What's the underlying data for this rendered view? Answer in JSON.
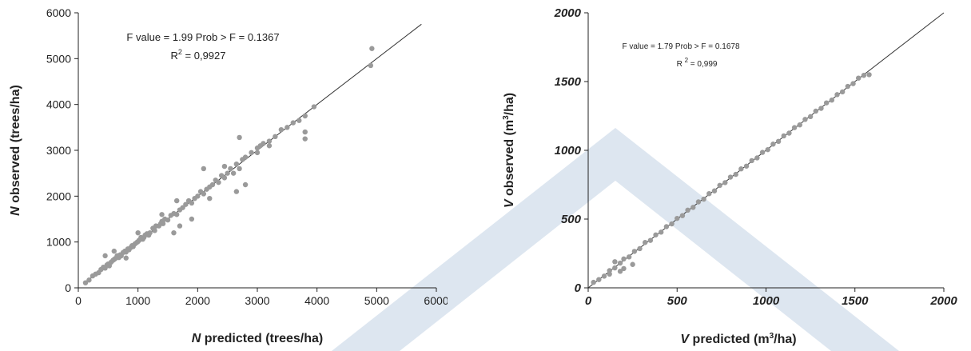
{
  "watermark_color": "#dde6f0",
  "point_color": "#9a9a9a",
  "line_color": "#333333",
  "chart_data": [
    {
      "type": "scatter",
      "xlabel_var": "N",
      "xlabel_rest": " predicted (trees/ha)",
      "ylabel_var": "N",
      "ylabel_rest": " observed (trees/ha)",
      "xlim": [
        0,
        6000
      ],
      "ylim": [
        0,
        6000
      ],
      "xticks": [
        "0",
        "1000",
        "2000",
        "3000",
        "4000",
        "5000",
        "6000"
      ],
      "yticks": [
        "0",
        "1000",
        "2000",
        "3000",
        "4000",
        "5000",
        "6000"
      ],
      "tick_style": "normal",
      "annotation_line1": "F value = 1.99 Prob > F = 0.1367",
      "annotation_r2_value": " = 0,9927",
      "fit_line": {
        "x": [
          100,
          5750
        ],
        "y": [
          100,
          5750
        ]
      },
      "points": {
        "x": [
          120,
          180,
          240,
          290,
          340,
          380,
          420,
          450,
          480,
          500,
          520,
          550,
          580,
          600,
          620,
          650,
          680,
          700,
          720,
          750,
          780,
          800,
          830,
          850,
          880,
          900,
          920,
          950,
          980,
          1000,
          1020,
          1050,
          1080,
          1100,
          1120,
          1150,
          1180,
          1200,
          1250,
          1280,
          1300,
          1350,
          1380,
          1400,
          1420,
          1450,
          1500,
          1550,
          1600,
          1650,
          1700,
          1750,
          1800,
          1850,
          1900,
          1950,
          2000,
          2050,
          2100,
          2150,
          2200,
          2250,
          2300,
          2350,
          2400,
          2450,
          2500,
          2550,
          2600,
          2650,
          2700,
          2750,
          2800,
          2900,
          3000,
          3050,
          3100,
          3200,
          3300,
          3400,
          3500,
          3600,
          3700,
          3800,
          3950,
          4900,
          4920,
          450,
          600,
          800,
          1000,
          1400,
          1600,
          1700,
          1900,
          2100,
          2200,
          2700,
          2800,
          3000,
          3200,
          3800,
          3800,
          2650,
          2450,
          1650
        ],
        "y": [
          110,
          170,
          260,
          300,
          330,
          400,
          450,
          430,
          500,
          520,
          480,
          560,
          600,
          620,
          640,
          700,
          660,
          720,
          700,
          770,
          800,
          780,
          850,
          830,
          880,
          920,
          900,
          960,
          990,
          1010,
          1040,
          1100,
          1060,
          1100,
          1150,
          1180,
          1150,
          1200,
          1300,
          1250,
          1350,
          1350,
          1400,
          1450,
          1400,
          1500,
          1480,
          1580,
          1620,
          1600,
          1700,
          1750,
          1820,
          1900,
          1850,
          1950,
          2000,
          2100,
          2050,
          2150,
          2200,
          2250,
          2350,
          2300,
          2450,
          2400,
          2500,
          2600,
          2500,
          2700,
          2600,
          2800,
          2850,
          2950,
          3050,
          3100,
          3150,
          3200,
          3300,
          3450,
          3500,
          3600,
          3650,
          3750,
          3950,
          4850,
          5220,
          700,
          800,
          650,
          1200,
          1600,
          1200,
          1350,
          1500,
          2600,
          1950,
          3280,
          2250,
          2950,
          3100,
          3250,
          3400,
          2100,
          2650,
          1900
        ]
      }
    },
    {
      "type": "scatter",
      "xlabel_var": "V",
      "xlabel_mid": " predicted (m",
      "xlabel_sup": "3",
      "xlabel_end": "/ha)",
      "ylabel_var": "V",
      "ylabel_mid": " observed (m",
      "ylabel_sup": "3",
      "ylabel_end": "/ha)",
      "xlim": [
        0,
        2000
      ],
      "ylim": [
        0,
        2000
      ],
      "xticks": [
        "0",
        "500",
        "1000",
        "1500",
        "2000"
      ],
      "yticks": [
        "0",
        "500",
        "1000",
        "1500",
        "2000"
      ],
      "tick_style": "bold-italic",
      "annotation_line1": "F value = 1.79 Prob > F = 0.1678",
      "annotation_r2_value": " = 0,999",
      "fit_line": {
        "x": [
          0,
          2000
        ],
        "y": [
          0,
          2000
        ]
      },
      "points": {
        "x": [
          30,
          60,
          90,
          120,
          150,
          180,
          200,
          230,
          260,
          290,
          320,
          350,
          380,
          410,
          440,
          470,
          500,
          530,
          560,
          590,
          620,
          650,
          680,
          710,
          740,
          770,
          800,
          830,
          860,
          890,
          920,
          950,
          980,
          1010,
          1040,
          1070,
          1100,
          1130,
          1160,
          1190,
          1220,
          1250,
          1280,
          1310,
          1340,
          1370,
          1400,
          1430,
          1460,
          1490,
          1520,
          1550,
          1580,
          150,
          200,
          250,
          180,
          120
        ],
        "y": [
          40,
          60,
          85,
          125,
          145,
          180,
          210,
          225,
          265,
          285,
          330,
          345,
          385,
          405,
          445,
          465,
          505,
          525,
          565,
          585,
          625,
          645,
          685,
          705,
          745,
          765,
          805,
          825,
          865,
          885,
          925,
          945,
          985,
          1005,
          1045,
          1065,
          1105,
          1125,
          1165,
          1185,
          1225,
          1245,
          1285,
          1305,
          1345,
          1365,
          1405,
          1425,
          1465,
          1485,
          1525,
          1545,
          1550,
          190,
          140,
          170,
          120,
          100
        ]
      }
    }
  ]
}
